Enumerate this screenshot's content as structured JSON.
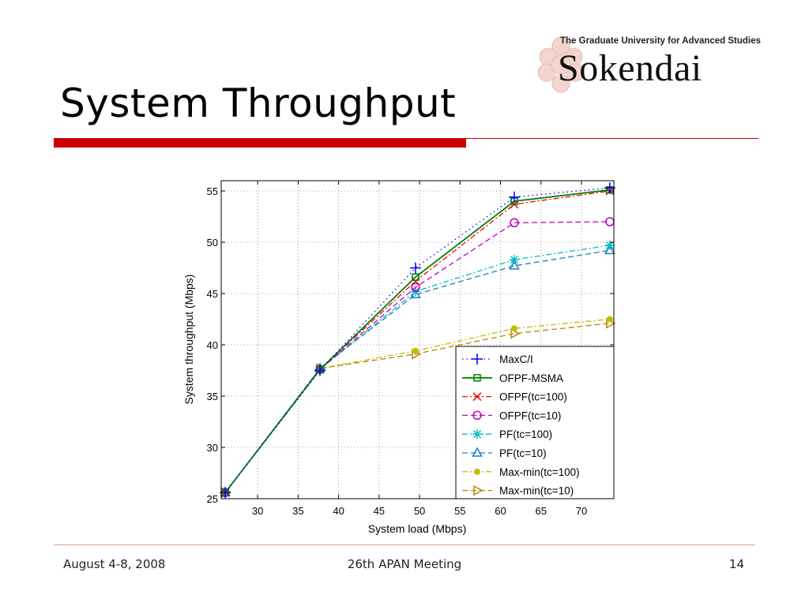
{
  "slide": {
    "title": "System Throughput",
    "logo_subtitle": "The Graduate University for Advanced Studies",
    "logo_name": "Sokendai",
    "footer_left": "August 4-8, 2008",
    "footer_center": "26th APAN Meeting",
    "page_number": "14"
  },
  "chart_data": {
    "type": "line",
    "title": "",
    "xlabel": "System load (Mbps)",
    "ylabel": "System throughput (Mbps)",
    "xlim": [
      25.5,
      74
    ],
    "ylim": [
      25,
      56
    ],
    "xticks": [
      30,
      35,
      40,
      45,
      50,
      55,
      60,
      65,
      70
    ],
    "yticks": [
      25,
      30,
      35,
      40,
      45,
      50,
      55
    ],
    "grid": true,
    "legend_position": "bottom-right",
    "x": [
      26,
      37.7,
      49.5,
      61.7,
      73.5
    ],
    "series": [
      {
        "name": "MaxC/I",
        "color": "#0000ff",
        "dash": "1.5,4",
        "marker": "plus",
        "values": [
          25.6,
          37.5,
          47.5,
          54.4,
          55.3
        ]
      },
      {
        "name": "OFPF-MSMA",
        "color": "#008000",
        "dash": "",
        "marker": "square",
        "values": [
          25.6,
          37.6,
          46.6,
          54.0,
          55.1
        ]
      },
      {
        "name": "OFPF(tc=100)",
        "color": "#ff0000",
        "dash": "7,3,2,3",
        "marker": "x",
        "values": [
          25.6,
          37.6,
          46.2,
          53.7,
          55.0
        ]
      },
      {
        "name": "OFPF(tc=10)",
        "color": "#c000c0",
        "dash": "7,4",
        "marker": "circle",
        "values": [
          25.6,
          37.6,
          45.6,
          51.9,
          52.0
        ]
      },
      {
        "name": "PF(tc=100)",
        "color": "#00bfbf",
        "dash": "7,3,2,3",
        "marker": "star",
        "values": [
          25.6,
          37.6,
          45.2,
          48.3,
          49.7
        ]
      },
      {
        "name": "PF(tc=10)",
        "color": "#1f7fc0",
        "dash": "7,4",
        "marker": "triangle",
        "values": [
          25.6,
          37.7,
          44.9,
          47.7,
          49.2
        ]
      },
      {
        "name": "Max-min(tc=100)",
        "color": "#bfbf00",
        "dash": "7,3,2,3",
        "marker": "dot",
        "values": [
          25.6,
          37.7,
          39.4,
          41.6,
          42.5
        ]
      },
      {
        "name": "Max-min(tc=10)",
        "color": "#b8860b",
        "dash": "7,4",
        "marker": "triangle-right",
        "values": [
          25.6,
          37.7,
          39.1,
          41.1,
          42.1
        ]
      }
    ]
  }
}
